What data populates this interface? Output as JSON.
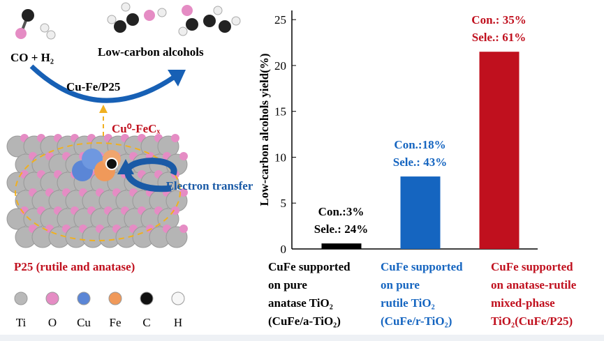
{
  "diagram": {
    "reactants": "CO + H₂",
    "products": "Low-carbon alcohols",
    "catalyst": "Cu-Fe/P25",
    "active_site": "Cu⁰-FeCₓ",
    "electron_transfer": "Electron transfer",
    "support": "P25 (rutile and anatase)",
    "legend": [
      {
        "label": "Ti",
        "color": "#b9b9b9"
      },
      {
        "label": "O",
        "color": "#e58cc4"
      },
      {
        "label": "Cu",
        "color": "#5b86d6"
      },
      {
        "label": "Fe",
        "color": "#f0995a"
      },
      {
        "label": "C",
        "color": "#111111"
      },
      {
        "label": "H",
        "color": "#f7f7f7"
      }
    ]
  },
  "chart_data": {
    "type": "bar",
    "ylabel": "Low-carbon alcohols yield(%)",
    "categories": [
      [
        "CuFe supported",
        "on pure",
        "anatase TiO₂",
        "(CuFe/a-TiO₂)"
      ],
      [
        "CuFe supported",
        "on pure",
        "rutile TiO₂",
        "(CuFe/r-TiO₂)"
      ],
      [
        "CuFe supported",
        "on anatase-rutile",
        "mixed-phase",
        "TiO₂(CuFe/P25)"
      ]
    ],
    "values": [
      0.6,
      7.9,
      21.5
    ],
    "colors": [
      "#000000",
      "#1565c0",
      "#c0101e"
    ],
    "annotations": [
      [
        "Con.:3%",
        "Sele.: 24%"
      ],
      [
        "Con.:18%",
        "Sele.: 43%"
      ],
      [
        "Con.: 35%",
        "Sele.: 61%"
      ]
    ],
    "ylim": [
      0,
      26
    ],
    "yticks": [
      0,
      5,
      10,
      15,
      20,
      25
    ],
    "grid": false
  }
}
